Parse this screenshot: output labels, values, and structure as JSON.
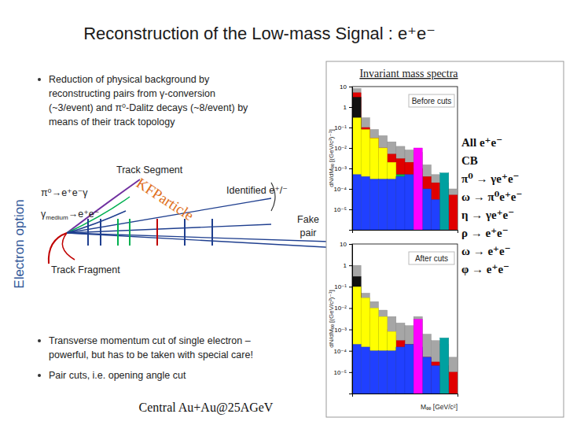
{
  "slide": {
    "title": "Reconstruction of the Low-mass Signal : e⁺e⁻",
    "bullets": [
      [
        "Reduction of physical background by",
        "reconstructing pairs from γ-conversion",
        "(~3/event) and π⁰-Dalitz decays (~8/event) by",
        "means of their track topology"
      ],
      [
        "Transverse momentum cut of single electron –",
        "powerful, but has to be taken with special care!"
      ],
      [
        "Pair cuts, i.e. opening angle cut"
      ]
    ],
    "side_label": "Electron option",
    "diagram": {
      "track_segment": "Track Segment",
      "decay_1": "π⁰→e⁺e⁻γ",
      "decay_2": {
        "base": "γ",
        "sub": "medium",
        "rest": "→e⁺e⁻"
      },
      "kfparticle": "KFParticle",
      "identified": "Identified e⁺/⁻",
      "fake_pair": [
        "Fake",
        "pair"
      ],
      "track_fragment": "Track Fragment"
    },
    "panel_title": "Invariant mass spectra",
    "footer": "Central Au+Au@25AGeV"
  },
  "chart_data": [
    {
      "type": "histogram",
      "title": "Before cuts",
      "ylabel": "dN/dMₑₑ [(GeV/c²)⁻¹]",
      "log": "y",
      "grid": false,
      "tick_labels": "y",
      "xlim": [
        0,
        1.2
      ],
      "ylim": [
        1e-06,
        10
      ],
      "yticks": [
        10,
        1,
        {
          "value": 0.1,
          "label": "10⁻¹"
        },
        {
          "value": 0.01,
          "label": "10⁻²"
        },
        {
          "value": 0.001,
          "label": "10⁻³"
        },
        {
          "value": 0.0001,
          "label": "10⁻⁴"
        },
        {
          "value": 1e-05,
          "label": "10⁻⁵"
        }
      ],
      "bins": [
        0,
        0.1,
        0.2,
        0.3,
        0.4,
        0.5,
        0.6,
        0.7,
        0.8,
        0.9,
        1.0,
        1.1,
        1.2
      ],
      "series": [
        {
          "name": "All e⁺e⁻",
          "color": "#a6a6a6",
          "values": [
            8,
            0.3,
            0.08,
            0.04,
            0.02,
            0.012,
            0.008,
            0.006,
            0.0015,
            0.0005,
            0.0002,
            0.0001
          ]
        },
        {
          "name": "CB",
          "color": "#e00000",
          "values": [
            5,
            0.1,
            0.03,
            0.01,
            0.005,
            0.003,
            0.002,
            0.001,
            0.0004,
            0.0002,
            0.0001,
            5e-05
          ]
        },
        {
          "name": "π⁰ → γe⁺e⁻",
          "color": "#111111",
          "values": [
            3,
            0.002,
            null,
            null,
            null,
            null,
            null,
            null,
            null,
            null,
            null,
            null
          ]
        },
        {
          "name": "ω → π⁰e⁺e⁻",
          "color": "#00b050",
          "values": [
            0.02,
            0.006,
            0.003,
            0.002,
            0.001,
            0.0005,
            0.0002,
            5e-05,
            null,
            null,
            null,
            null
          ]
        },
        {
          "name": "η → γe⁺e⁻",
          "color": "#ffff00",
          "values": [
            0.3,
            0.08,
            0.03,
            0.01,
            0.002,
            0.0001,
            null,
            null,
            null,
            null,
            null,
            null
          ]
        },
        {
          "name": "ρ → e⁺e⁻",
          "color": "#2040ff",
          "values": [
            0.0005,
            0.0004,
            0.0003,
            0.0003,
            0.0003,
            0.0004,
            0.0005,
            0.0004,
            0.0001,
            3e-05,
            1e-05,
            null
          ]
        },
        {
          "name": "ω → e⁺e⁻",
          "color": "#ff00ff",
          "values": [
            null,
            null,
            null,
            null,
            null,
            null,
            null,
            0.01,
            null,
            null,
            null,
            null
          ]
        },
        {
          "name": "φ → e⁺e⁻",
          "color": "#00a0a0",
          "values": [
            null,
            null,
            null,
            null,
            null,
            null,
            null,
            null,
            null,
            null,
            0.0006,
            null
          ]
        }
      ]
    },
    {
      "type": "histogram",
      "title": "After cuts",
      "ylabel": "dN/dMₑₑ [(GeV/c²)⁻¹]",
      "xlabel": "Mₑₑ [GeV/c²]",
      "log": "y",
      "grid": false,
      "tick_labels": "y",
      "xlim": [
        0,
        1.2
      ],
      "ylim": [
        1e-06,
        10
      ],
      "yticks": [
        10,
        1,
        {
          "value": 0.1,
          "label": "10⁻¹"
        },
        {
          "value": 0.01,
          "label": "10⁻²"
        },
        {
          "value": 0.001,
          "label": "10⁻³"
        },
        {
          "value": 0.0001,
          "label": "10⁻⁴"
        },
        {
          "value": 1e-05,
          "label": "10⁻⁵"
        }
      ],
      "bins": [
        0,
        0.1,
        0.2,
        0.3,
        0.4,
        0.5,
        0.6,
        0.7,
        0.8,
        0.9,
        1.0,
        1.1,
        1.2
      ],
      "series": [
        {
          "color": "#a6a6a6",
          "values": [
            1,
            0.05,
            0.02,
            0.008,
            0.004,
            0.002,
            0.0015,
            0.004,
            0.0006,
            0.0003,
            0.0002,
            5e-05
          ]
        },
        {
          "color": "#e00000",
          "values": [
            0.05,
            0.01,
            0.004,
            0.001,
            0.0005,
            0.0003,
            0.0002,
            0.0001,
            5e-05,
            3e-05,
            2e-05,
            1e-05
          ]
        },
        {
          "color": "#111111",
          "values": [
            0.3,
            0.0005,
            null,
            null,
            null,
            null,
            null,
            null,
            null,
            null,
            null,
            null
          ]
        },
        {
          "color": "#00b050",
          "values": [
            0.005,
            0.002,
            0.001,
            0.0006,
            0.0003,
            0.0001,
            4e-05,
            1e-05,
            null,
            null,
            null,
            null
          ]
        },
        {
          "color": "#ffff00",
          "values": [
            0.1,
            0.03,
            0.01,
            0.004,
            0.0008,
            5e-05,
            null,
            null,
            null,
            null,
            null,
            null
          ]
        },
        {
          "color": "#2040ff",
          "values": [
            0.0002,
            0.00015,
            0.0001,
            0.0001,
            0.0001,
            0.00015,
            0.0002,
            0.00015,
            5e-05,
            2e-05,
            5e-06,
            null
          ]
        },
        {
          "color": "#ff00ff",
          "values": [
            null,
            null,
            null,
            null,
            null,
            null,
            null,
            0.003,
            null,
            null,
            null,
            null
          ]
        },
        {
          "color": "#00a0a0",
          "values": [
            null,
            null,
            null,
            null,
            null,
            null,
            null,
            null,
            null,
            null,
            0.0004,
            null
          ]
        }
      ]
    }
  ]
}
